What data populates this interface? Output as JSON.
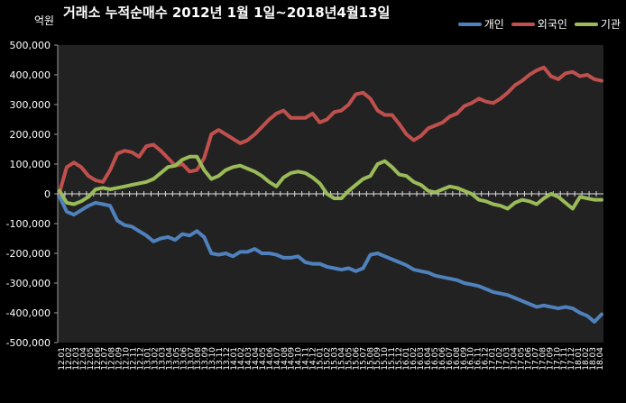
{
  "chart_data": {
    "type": "line",
    "title": "거래소 누적순매수 2012년 1월 1일~2018년4월13일",
    "unit_label": "억원",
    "ylim": [
      -500000,
      500000
    ],
    "y_ticks": [
      500000,
      400000,
      300000,
      200000,
      100000,
      0,
      -100000,
      -200000,
      -300000,
      -400000,
      -500000
    ],
    "y_tick_labels": [
      "500,000",
      "400,000",
      "300,000",
      "200,000",
      "100,000",
      "0",
      "-100,000",
      "-200,000",
      "-300,000",
      "-400,000",
      "-500,000"
    ],
    "x_tick_labels": [
      "12.01",
      "12.02",
      "12.03",
      "12.04",
      "12.05",
      "12.06",
      "12.07",
      "12.08",
      "12.09",
      "12.10",
      "12.11",
      "12.12",
      "13.01",
      "13.02",
      "13.03",
      "13.04",
      "13.05",
      "13.06",
      "13.07",
      "13.08",
      "13.09",
      "13.10",
      "13.11",
      "13.12",
      "14.01",
      "14.02",
      "14.03",
      "14.04",
      "14.05",
      "14.06",
      "14.07",
      "14.08",
      "14.09",
      "14.10",
      "14.11",
      "14.12",
      "15.01",
      "15.02",
      "15.03",
      "15.04",
      "15.05",
      "15.06",
      "15.07",
      "15.08",
      "15.09",
      "15.10",
      "15.11",
      "15.12",
      "16.01",
      "16.02",
      "16.03",
      "16.04",
      "16.05",
      "16.06",
      "16.07",
      "16.08",
      "16.09",
      "16.10",
      "16.11",
      "16.12",
      "17.01",
      "17.02",
      "17.03",
      "17.04",
      "17.05",
      "17.06",
      "17.07",
      "17.08",
      "17.09",
      "17.10",
      "17.11",
      "17.12",
      "18.01",
      "18.02",
      "18.03",
      "18.04"
    ],
    "grid": false,
    "legend_position": "top-right",
    "series": [
      {
        "name": "개인",
        "color": "#4f81bd",
        "values": [
          -10000,
          -60000,
          -70000,
          -55000,
          -40000,
          -30000,
          -35000,
          -40000,
          -90000,
          -105000,
          -110000,
          -125000,
          -140000,
          -160000,
          -150000,
          -145000,
          -155000,
          -135000,
          -140000,
          -125000,
          -145000,
          -200000,
          -205000,
          -200000,
          -210000,
          -195000,
          -195000,
          -185000,
          -200000,
          -200000,
          -205000,
          -215000,
          -215000,
          -210000,
          -230000,
          -235000,
          -235000,
          -245000,
          -250000,
          -255000,
          -250000,
          -260000,
          -250000,
          -205000,
          -200000,
          -210000,
          -220000,
          -230000,
          -240000,
          -255000,
          -260000,
          -265000,
          -275000,
          -280000,
          -285000,
          -290000,
          -300000,
          -305000,
          -310000,
          -320000,
          -330000,
          -335000,
          -340000,
          -350000,
          -360000,
          -370000,
          -380000,
          -375000,
          -380000,
          -385000,
          -380000,
          -385000,
          -400000,
          -410000,
          -430000,
          -405000
        ]
      },
      {
        "name": "외국인",
        "color": "#c0504d",
        "values": [
          5000,
          90000,
          105000,
          90000,
          60000,
          45000,
          40000,
          80000,
          135000,
          145000,
          140000,
          125000,
          160000,
          165000,
          145000,
          120000,
          95000,
          100000,
          75000,
          80000,
          120000,
          200000,
          215000,
          200000,
          185000,
          170000,
          180000,
          200000,
          225000,
          250000,
          270000,
          280000,
          255000,
          255000,
          255000,
          270000,
          240000,
          250000,
          275000,
          280000,
          300000,
          335000,
          340000,
          320000,
          280000,
          265000,
          265000,
          235000,
          200000,
          180000,
          195000,
          220000,
          230000,
          240000,
          260000,
          270000,
          295000,
          305000,
          320000,
          310000,
          305000,
          320000,
          340000,
          365000,
          380000,
          400000,
          415000,
          425000,
          395000,
          385000,
          405000,
          410000,
          395000,
          400000,
          385000,
          380000
        ]
      },
      {
        "name": "기관",
        "color": "#9bbb59",
        "values": [
          10000,
          -30000,
          -35000,
          -25000,
          -10000,
          15000,
          20000,
          15000,
          20000,
          25000,
          30000,
          35000,
          40000,
          50000,
          70000,
          90000,
          95000,
          115000,
          125000,
          125000,
          80000,
          50000,
          60000,
          80000,
          90000,
          95000,
          85000,
          75000,
          60000,
          40000,
          25000,
          55000,
          70000,
          75000,
          70000,
          55000,
          35000,
          0,
          -15000,
          -15000,
          10000,
          30000,
          50000,
          60000,
          100000,
          110000,
          90000,
          65000,
          60000,
          40000,
          30000,
          10000,
          5000,
          15000,
          25000,
          20000,
          10000,
          0,
          -20000,
          -25000,
          -35000,
          -40000,
          -50000,
          -30000,
          -20000,
          -25000,
          -35000,
          -15000,
          0,
          -10000,
          -30000,
          -50000,
          -10000,
          -15000,
          -20000,
          -20000
        ]
      }
    ]
  }
}
